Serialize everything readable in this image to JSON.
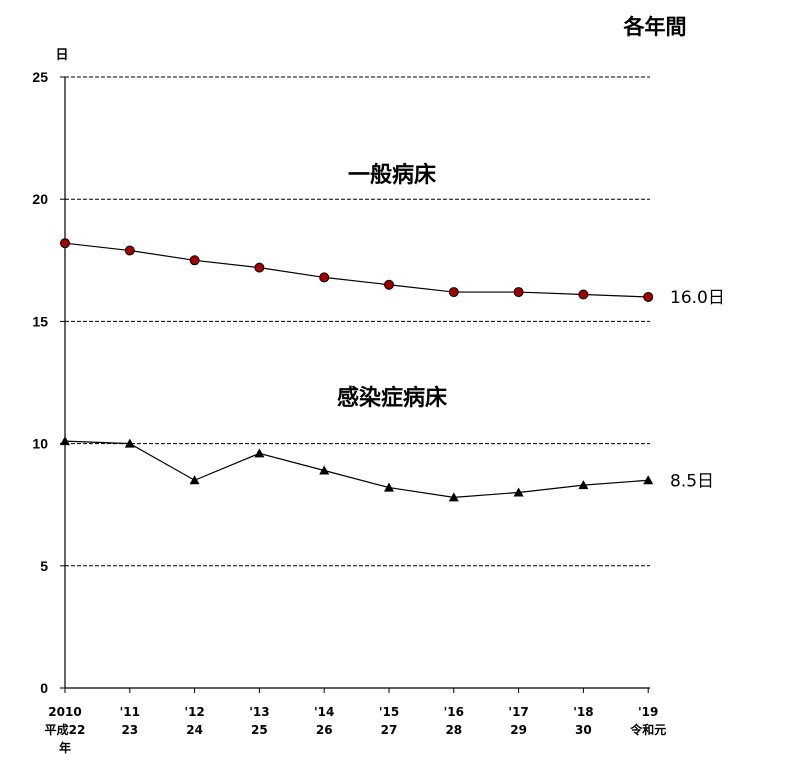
{
  "header": {
    "period": "各年間"
  },
  "chart_data": {
    "type": "line",
    "y_unit": "日",
    "ylim": [
      0,
      25
    ],
    "yticks": [
      0,
      5,
      10,
      15,
      20,
      25
    ],
    "grid": "dashed horizontal",
    "categories": [
      {
        "top": "2010",
        "sub": "平成22",
        "sub2": "年"
      },
      {
        "top": "'11",
        "sub": "23"
      },
      {
        "top": "'12",
        "sub": "24"
      },
      {
        "top": "'13",
        "sub": "25"
      },
      {
        "top": "'14",
        "sub": "26"
      },
      {
        "top": "'15",
        "sub": "27"
      },
      {
        "top": "'16",
        "sub": "28"
      },
      {
        "top": "'17",
        "sub": "29"
      },
      {
        "top": "'18",
        "sub": "30"
      },
      {
        "top": "'19",
        "sub": "令和元"
      }
    ],
    "series": [
      {
        "name": "一般病床",
        "marker": "circle",
        "marker_color": "#a00000",
        "values": [
          18.2,
          17.9,
          17.5,
          17.2,
          16.8,
          16.5,
          16.2,
          16.2,
          16.1,
          16.0
        ],
        "end_label": "16.0日"
      },
      {
        "name": "感染症病床",
        "marker": "triangle",
        "marker_color": "#000000",
        "values": [
          10.1,
          10.0,
          8.5,
          9.6,
          8.9,
          8.2,
          7.8,
          8.0,
          8.3,
          8.5
        ],
        "end_label": "8.5日"
      }
    ]
  }
}
